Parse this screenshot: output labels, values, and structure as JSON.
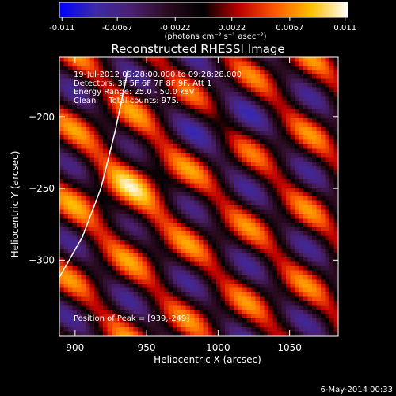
{
  "colorbar": {
    "ticks": [
      "-0.011",
      "-0.0067",
      "-0.0022",
      "0.0022",
      "0.0067",
      "0.011"
    ],
    "tick_values": [
      -0.011,
      -0.0067,
      -0.0022,
      0.0022,
      0.0067,
      0.011
    ],
    "range": [
      -0.0112,
      0.0112
    ],
    "unit_label": "(photons cm⁻² s⁻¹ asec⁻²)"
  },
  "info": {
    "time": "19-Jul-2012 09:28:00.000 to 09:28:28.000",
    "detectors": "Detectors: 3F 5F 6F 7F 8F 9F, Att 1",
    "energy": "Energy Range: 25.0 - 50.0 keV",
    "method": "Clean     Total counts: 975.",
    "peak": "Position of Peak = [939,-249]"
  },
  "footer_date": "6-May-2014 00:33",
  "colors": {
    "background": "#000000",
    "text": "#ffffff",
    "colormap": [
      "#0000ff",
      "#3c2aa8",
      "#4a2070",
      "#2a0a1e",
      "#000000",
      "#c00000",
      "#ff5a00",
      "#ffc000",
      "#ffffff"
    ]
  },
  "chart_data": {
    "type": "heatmap",
    "title": "Reconstructed RHESSI Image",
    "xlabel": "Heliocentric X (arcsec)",
    "ylabel": "Heliocentric Y (arcsec)",
    "xlim": [
      889,
      1084
    ],
    "ylim": [
      -353,
      -158
    ],
    "x_ticks": [
      900,
      950,
      1000,
      1050
    ],
    "y_ticks": [
      -200,
      -250,
      -300
    ],
    "x_tick_labels": [
      "900",
      "950",
      "1000",
      "1050"
    ],
    "y_tick_labels": [
      "−200",
      "−250",
      "−300"
    ],
    "value_range": [
      -0.011,
      0.011
    ],
    "peak": {
      "x": 939,
      "y": -249
    },
    "limb_curve": [
      [
        889,
        -312
      ],
      [
        905,
        -284
      ],
      [
        918,
        -250
      ],
      [
        928,
        -210
      ],
      [
        937,
        -167
      ]
    ]
  }
}
